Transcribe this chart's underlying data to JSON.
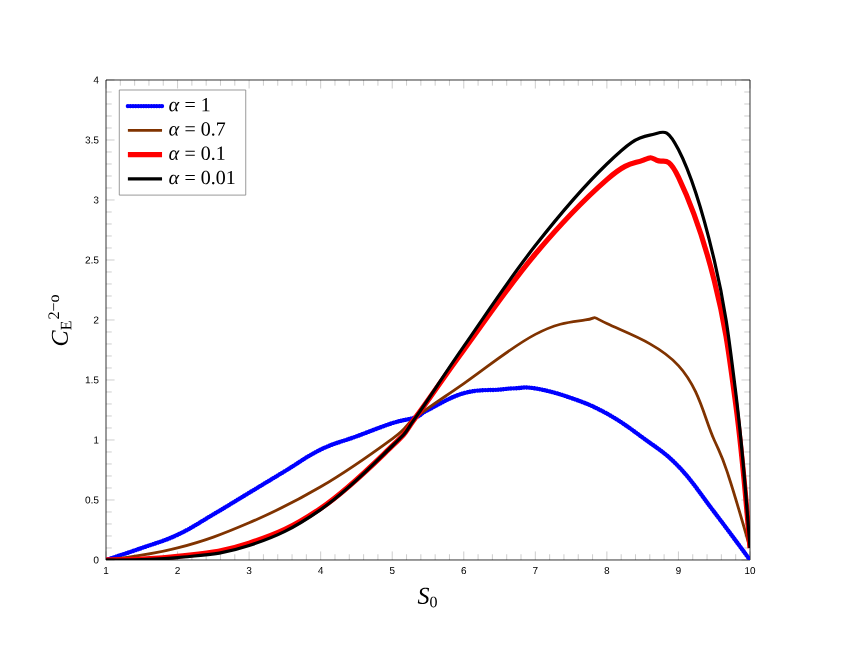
{
  "chart_data": {
    "type": "line",
    "xlabel": "*S*$_{0}$",
    "ylabel": "*C*$_{E}$$^{2−o}$",
    "xlim": [
      1,
      10
    ],
    "ylim": [
      0,
      4
    ],
    "xticks": [
      1,
      2,
      3,
      4,
      5,
      6,
      7,
      8,
      9,
      10
    ],
    "yticks": [
      0,
      0.5,
      1,
      1.5,
      2,
      2.5,
      3,
      3.5,
      4
    ],
    "legend": "top left",
    "grid": false,
    "marker": "none",
    "series": [
      {
        "name": "*α* = 1",
        "color": "#0000ff",
        "line_style": "dotted",
        "x": [
          1,
          1.5,
          2,
          2.5,
          3,
          3.5,
          4,
          4.5,
          5,
          5.33,
          5.5,
          6,
          6.5,
          6.7,
          7,
          7.5,
          8,
          8.5,
          9,
          9.5,
          10
        ],
        "values": [
          0,
          0.1,
          0.21,
          0.38,
          0.56,
          0.74,
          0.92,
          1.03,
          1.14,
          1.19,
          1.25,
          1.39,
          1.42,
          1.43,
          1.43,
          1.35,
          1.22,
          1.02,
          0.78,
          0.4,
          0
        ]
      },
      {
        "name": "*α* = 0.7",
        "color": "#803300",
        "line_style": "solid",
        "x": [
          1,
          2,
          3,
          4,
          5,
          5.33,
          6,
          7,
          7.7,
          8,
          9,
          9.5,
          9.7,
          10
        ],
        "values": [
          0,
          0.1,
          0.31,
          0.61,
          1.01,
          1.19,
          1.47,
          1.88,
          2.0,
          1.97,
          1.62,
          1.0,
          0.7,
          0.1
        ]
      },
      {
        "name": "*α* = 0.1",
        "color": "#ff0000",
        "line_style": "solid",
        "x": [
          1,
          2,
          3,
          4,
          5,
          5.33,
          6,
          7,
          8,
          8.5,
          8.7,
          9,
          9.5,
          9.8,
          10
        ],
        "values": [
          0,
          0.03,
          0.14,
          0.43,
          0.95,
          1.19,
          1.75,
          2.55,
          3.17,
          3.33,
          3.33,
          3.19,
          2.33,
          1.3,
          0.1
        ]
      },
      {
        "name": "*α* = 0.01",
        "color": "#000000",
        "line_style": "solid",
        "x": [
          1,
          2,
          3,
          4,
          5,
          5.33,
          6,
          7,
          8,
          8.6,
          9,
          9.5,
          9.8,
          10
        ],
        "values": [
          0,
          0.02,
          0.12,
          0.42,
          0.95,
          1.19,
          1.78,
          2.62,
          3.3,
          3.54,
          3.42,
          2.5,
          1.4,
          0.1
        ]
      }
    ]
  }
}
